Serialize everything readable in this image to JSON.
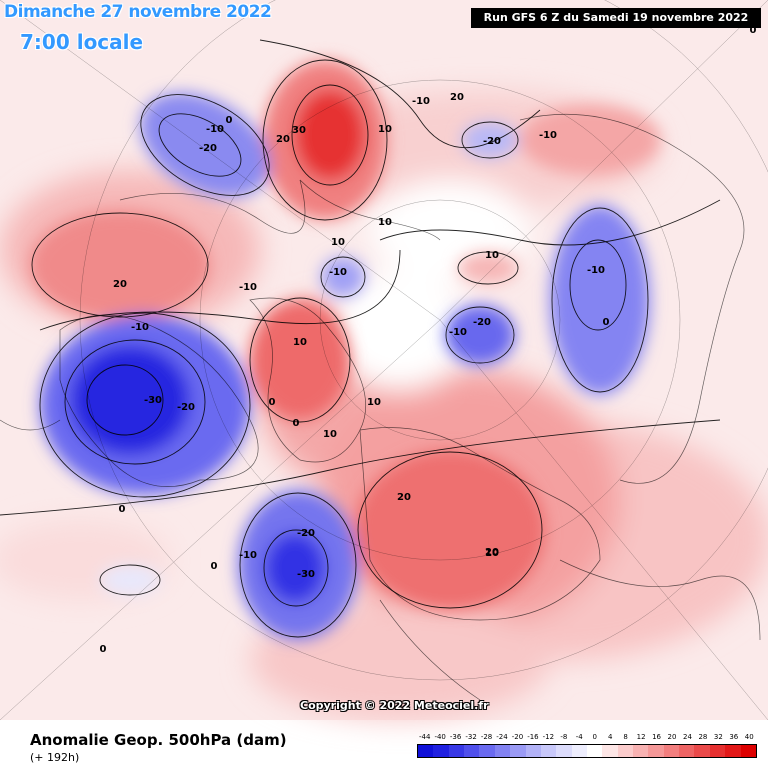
{
  "header": {
    "date": "Dimanche 27 novembre 2022",
    "time": "7:00 locale",
    "run": "Run GFS 6 Z du Samedi 19 novembre 2022"
  },
  "footer": {
    "title": "Anomalie Geop. 500hPa (dam)",
    "subtitle": "(+ 192h)",
    "copyright": "Copyright © 2022 Meteociel.fr"
  },
  "legend": {
    "ticks": [
      "-44",
      "-40",
      "-36",
      "-32",
      "-28",
      "-24",
      "-20",
      "-16",
      "-12",
      "-8",
      "-4",
      "0",
      "4",
      "8",
      "12",
      "16",
      "20",
      "24",
      "28",
      "32",
      "36",
      "40"
    ],
    "colors": [
      "#1010d8",
      "#2020e0",
      "#3838e6",
      "#5050ec",
      "#6a6af0",
      "#8282f2",
      "#9a9af5",
      "#b2b2f7",
      "#c8c8fa",
      "#dcdcfc",
      "#eeeefe",
      "#ffffff",
      "#fde6e6",
      "#fbcccc",
      "#f8b2b2",
      "#f59898",
      "#f27e7e",
      "#ee6464",
      "#ea4a4a",
      "#e63030",
      "#e21818",
      "#dd0000"
    ]
  },
  "anomalies": [
    {
      "id": "pos-alaska-ridge",
      "value": "30",
      "color": "#e63030"
    },
    {
      "id": "neg-east-siberia",
      "value": "-20",
      "color": "#6a6af0"
    },
    {
      "id": "pos-west-pacific",
      "value": "20",
      "color": "#f27e7e"
    },
    {
      "id": "neg-north-america",
      "value": "-30",
      "color": "#2020e0"
    },
    {
      "id": "neg-north-pacific",
      "value": "-30",
      "color": "#3838e6"
    },
    {
      "id": "pos-greenland",
      "value": "20",
      "color": "#f27e7e"
    },
    {
      "id": "pos-europe",
      "value": "20",
      "color": "#f59898"
    },
    {
      "id": "neg-iceland-low",
      "value": "-20",
      "color": "#6a6af0"
    },
    {
      "id": "neg-canada-west",
      "value": "-20",
      "color": "#8282f2"
    }
  ],
  "contour_labels": [
    "-10",
    "-20",
    "0",
    "20",
    "30",
    "10",
    "10",
    "10",
    "-10",
    "10",
    "-10",
    "-20",
    "10",
    "0",
    "-10",
    "0",
    "20",
    "-10",
    "-10",
    "-20",
    "-10",
    "-30",
    "-20",
    "20",
    "10",
    "10",
    "10",
    "0",
    "20",
    "20",
    "-20",
    "-10",
    "-30",
    "-10",
    "0",
    "0",
    "0",
    "0"
  ]
}
